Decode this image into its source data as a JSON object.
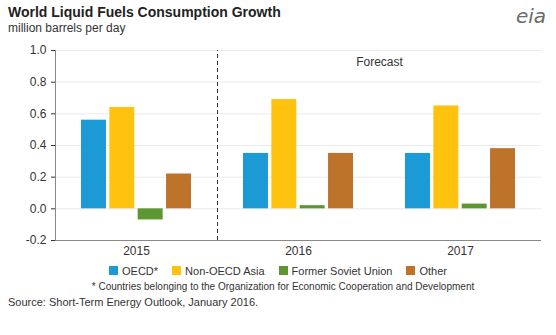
{
  "chart_data": {
    "type": "bar",
    "title": "World Liquid Fuels Consumption Growth",
    "subtitle": "million barrels per day",
    "categories": [
      "2015",
      "2016",
      "2017"
    ],
    "series": [
      {
        "name": "OECD*",
        "color": "#1b9ad6",
        "values": [
          0.56,
          0.35,
          0.35
        ]
      },
      {
        "name": "Non-OECD Asia",
        "color": "#ffc20e",
        "values": [
          0.64,
          0.69,
          0.65
        ]
      },
      {
        "name": "Former Soviet Union",
        "color": "#5d9732",
        "values": [
          -0.07,
          0.02,
          0.03
        ]
      },
      {
        "name": "Other",
        "color": "#bd732a",
        "values": [
          0.22,
          0.35,
          0.38
        ]
      }
    ],
    "ylim": [
      -0.2,
      1.0
    ],
    "yticks": [
      -0.2,
      {
        "value": 0,
        "label": "0.0"
      },
      0.2,
      0.4,
      0.6,
      0.8,
      {
        "value": 1,
        "label": "1.0"
      }
    ],
    "grid": true,
    "legend": "bottom",
    "annotations": [
      {
        "text": "Forecast",
        "x": "2016"
      }
    ],
    "footnote": "* Countries belonging to the Organization for Economic Cooperation and Development",
    "source": "Source: Short-Term Energy Outlook, January 2016.",
    "logo": "eia"
  }
}
